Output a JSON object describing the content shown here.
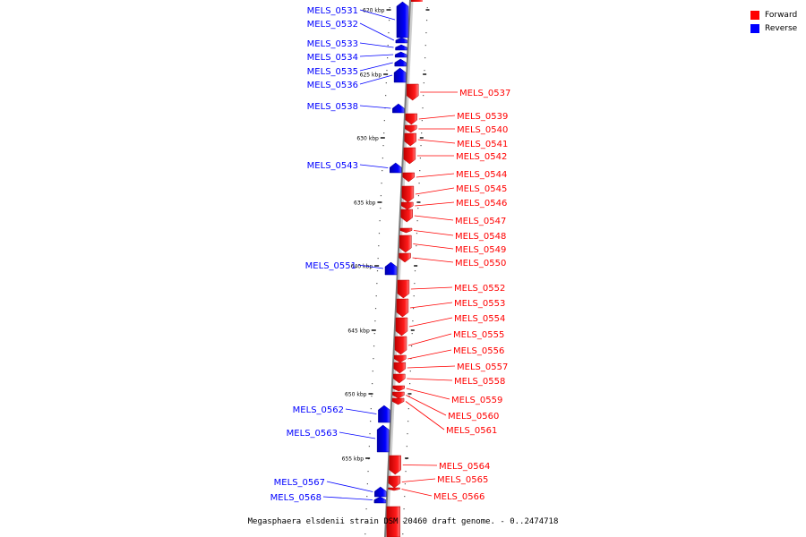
{
  "legend": {
    "forward_label": "Forward",
    "reverse_label": "Reverse",
    "forward_color": "#ff0000",
    "reverse_color": "#0000ff"
  },
  "axis": {
    "ticks": [
      "620 kbp",
      "625 kbp",
      "630 kbp",
      "635 kbp",
      "640 kbp",
      "645 kbp",
      "650 kbp",
      "655 kbp"
    ]
  },
  "caption": "Megasphaera elsdenii strain DSM 20460 draft genome. - 0..2474718",
  "genes": [
    {
      "label": "MELS_0531",
      "strand": "reverse"
    },
    {
      "label": "MELS_0532",
      "strand": "reverse"
    },
    {
      "label": "MELS_0533",
      "strand": "reverse"
    },
    {
      "label": "MELS_0534",
      "strand": "reverse"
    },
    {
      "label": "MELS_0535",
      "strand": "reverse"
    },
    {
      "label": "MELS_0536",
      "strand": "reverse"
    },
    {
      "label": "MELS_0537",
      "strand": "forward"
    },
    {
      "label": "MELS_0538",
      "strand": "reverse"
    },
    {
      "label": "MELS_0539",
      "strand": "forward"
    },
    {
      "label": "MELS_0540",
      "strand": "forward"
    },
    {
      "label": "MELS_0541",
      "strand": "forward"
    },
    {
      "label": "MELS_0542",
      "strand": "forward"
    },
    {
      "label": "MELS_0543",
      "strand": "reverse"
    },
    {
      "label": "MELS_0544",
      "strand": "forward"
    },
    {
      "label": "MELS_0545",
      "strand": "forward"
    },
    {
      "label": "MELS_0546",
      "strand": "forward"
    },
    {
      "label": "MELS_0547",
      "strand": "forward"
    },
    {
      "label": "MELS_0548",
      "strand": "forward"
    },
    {
      "label": "MELS_0549",
      "strand": "forward"
    },
    {
      "label": "MELS_0550",
      "strand": "forward"
    },
    {
      "label": "MELS_0551",
      "strand": "reverse"
    },
    {
      "label": "MELS_0552",
      "strand": "forward"
    },
    {
      "label": "MELS_0553",
      "strand": "forward"
    },
    {
      "label": "MELS_0554",
      "strand": "forward"
    },
    {
      "label": "MELS_0555",
      "strand": "forward"
    },
    {
      "label": "MELS_0556",
      "strand": "forward"
    },
    {
      "label": "MELS_0557",
      "strand": "forward"
    },
    {
      "label": "MELS_0558",
      "strand": "forward"
    },
    {
      "label": "MELS_0559",
      "strand": "forward"
    },
    {
      "label": "MELS_0560",
      "strand": "forward"
    },
    {
      "label": "MELS_0561",
      "strand": "forward"
    },
    {
      "label": "MELS_0562",
      "strand": "reverse"
    },
    {
      "label": "MELS_0563",
      "strand": "reverse"
    },
    {
      "label": "MELS_0564",
      "strand": "forward"
    },
    {
      "label": "MELS_0565",
      "strand": "forward"
    },
    {
      "label": "MELS_0566",
      "strand": "forward"
    },
    {
      "label": "MELS_0567",
      "strand": "reverse"
    },
    {
      "label": "MELS_0568",
      "strand": "reverse"
    }
  ]
}
